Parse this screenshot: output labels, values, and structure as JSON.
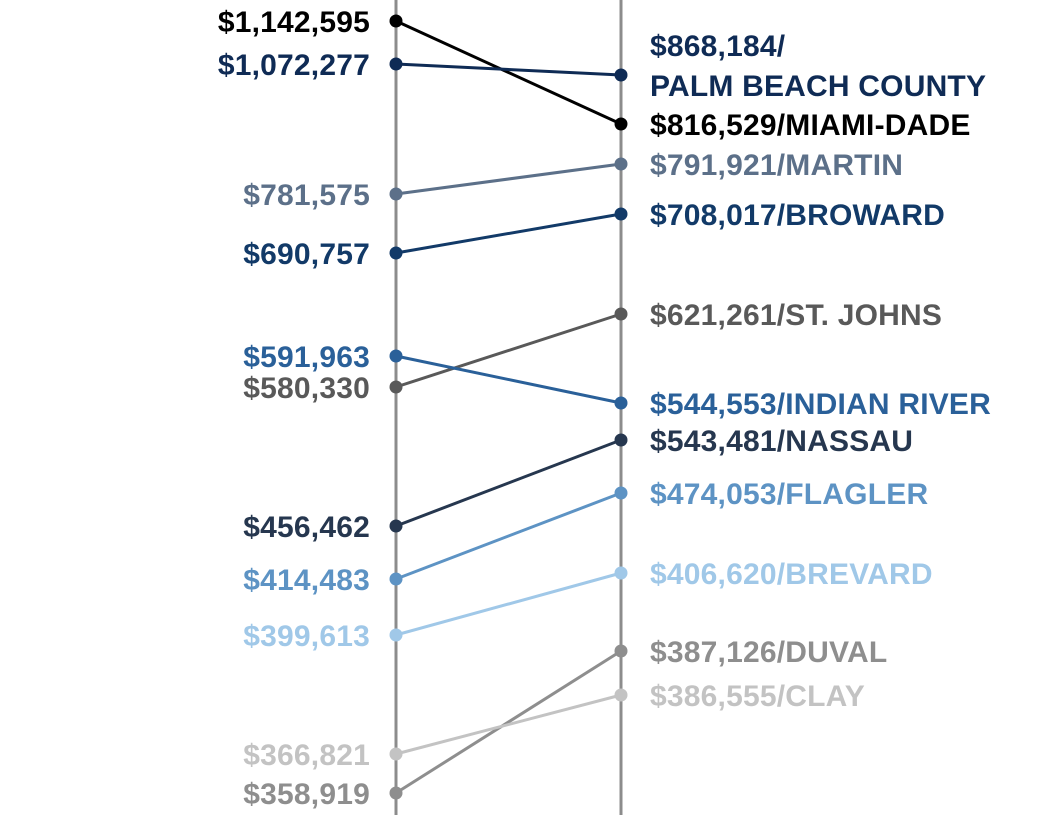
{
  "chart_data": {
    "type": "slope",
    "title": "",
    "xlabel": "",
    "ylabel": "",
    "legend": "none",
    "grid": false,
    "series": [
      {
        "name": "MIAMI-DADE",
        "start_label": "$1,142,595",
        "end_label": "$816,529/MIAMI-DADE",
        "start": 1142595,
        "end": 816529,
        "color": "#000000"
      },
      {
        "name": "PALM BEACH COUNTY",
        "start_label": "$1,072,277",
        "end_label": [
          "$868,184/",
          "PALM BEACH COUNTY"
        ],
        "start": 1072277,
        "end": 868184,
        "color": "#0f2b55"
      },
      {
        "name": "MARTIN",
        "start_label": "$781,575",
        "end_label": "$791,921/MARTIN",
        "start": 781575,
        "end": 791921,
        "color": "#5c7089"
      },
      {
        "name": "BROWARD",
        "start_label": "$690,757",
        "end_label": "$708,017/BROWARD",
        "start": 690757,
        "end": 708017,
        "color": "#123a68"
      },
      {
        "name": "ST. JOHNS",
        "start_label": "$580,330",
        "end_label": "$621,261/ST. JOHNS",
        "start": 580330,
        "end": 621261,
        "color": "#595959"
      },
      {
        "name": "INDIAN RIVER",
        "start_label": "$591,963",
        "end_label": "$544,553/INDIAN RIVER",
        "start": 591963,
        "end": 544553,
        "color": "#2a6099"
      },
      {
        "name": "NASSAU",
        "start_label": "$456,462",
        "end_label": "$543,481/NASSAU",
        "start": 456462,
        "end": 543481,
        "color": "#26374f"
      },
      {
        "name": "FLAGLER",
        "start_label": "$414,483",
        "end_label": "$474,053/FLAGLER",
        "start": 414483,
        "end": 474053,
        "color": "#5d93c4"
      },
      {
        "name": "BREVARD",
        "start_label": "$399,613",
        "end_label": "$406,620/BREVARD",
        "start": 399613,
        "end": 406620,
        "color": "#a0c8e8"
      },
      {
        "name": "DUVAL",
        "start_label": "$358,919",
        "end_label": "$387,126/DUVAL",
        "start": 358919,
        "end": 387126,
        "color": "#8e8e8e"
      },
      {
        "name": "CLAY",
        "start_label": "$366,821",
        "end_label": "$386,555/CLAY",
        "start": 366821,
        "end": 386555,
        "color": "#c3c3c3"
      }
    ],
    "axis_color": "#8c8c8c"
  }
}
